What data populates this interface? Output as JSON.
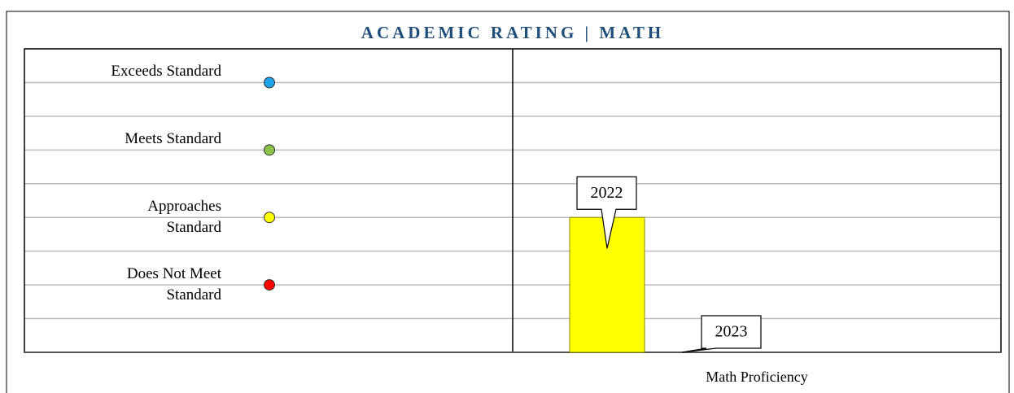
{
  "chart_data": {
    "type": "bar",
    "title": "ACADEMIC RATING | MATH",
    "categories": [
      "Math Proficiency"
    ],
    "series": [
      {
        "name": "2022",
        "color": "#ffff00",
        "values": [
          4
        ]
      },
      {
        "name": "2023",
        "color": "#ffff00",
        "values": [
          0
        ]
      }
    ],
    "levels": [
      {
        "label": "Exceeds Standard",
        "value": 8,
        "color": "#1ca3ec"
      },
      {
        "label": "Meets Standard",
        "value": 6,
        "color": "#8bc34a"
      },
      {
        "label": "Approaches Standard",
        "value": 4,
        "color": "#ffff00"
      },
      {
        "label": "Does Not Meet Standard",
        "value": 2,
        "color": "#ff0000"
      }
    ],
    "ylim": [
      0,
      9
    ],
    "yticks": [
      0,
      1,
      2,
      3,
      4,
      5,
      6,
      7,
      8,
      9
    ],
    "grid": true
  }
}
